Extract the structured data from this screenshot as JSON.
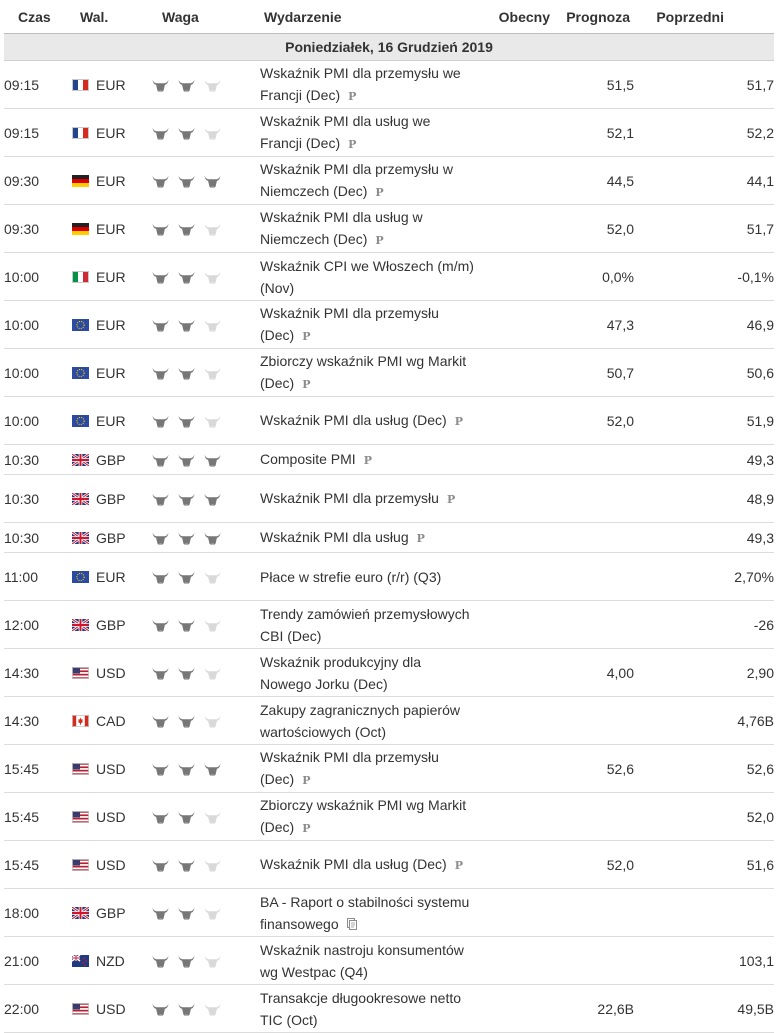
{
  "headers": {
    "time": "Czas",
    "currency": "Wal.",
    "importance": "Waga",
    "event": "Wydarzenie",
    "actual": "Obecny",
    "forecast": "Prognoza",
    "previous": "Poprzedni"
  },
  "date_label": "Poniedziałek, 16 Grudzień 2019",
  "preliminary_mark": "P",
  "importance_max": 3,
  "colors": {
    "bull_active": "#777777",
    "bull_inactive": "#d9d9d9",
    "date_row_bg": "#e9e9e9"
  },
  "events": [
    {
      "time": "09:15",
      "flag": "fr",
      "currency": "EUR",
      "importance": 2,
      "event": "Wskaźnik PMI dla przemysłu we Francji (Dec)",
      "marker": "P",
      "actual": "",
      "forecast": "51,5",
      "previous": "51,7"
    },
    {
      "time": "09:15",
      "flag": "fr",
      "currency": "EUR",
      "importance": 2,
      "event": "Wskaźnik PMI dla usług we Francji (Dec)",
      "marker": "P",
      "actual": "",
      "forecast": "52,1",
      "previous": "52,2"
    },
    {
      "time": "09:30",
      "flag": "de",
      "currency": "EUR",
      "importance": 3,
      "event": "Wskaźnik PMI dla przemysłu w Niemczech (Dec)",
      "marker": "P",
      "actual": "",
      "forecast": "44,5",
      "previous": "44,1"
    },
    {
      "time": "09:30",
      "flag": "de",
      "currency": "EUR",
      "importance": 2,
      "event": "Wskaźnik PMI dla usług w Niemczech (Dec)",
      "marker": "P",
      "actual": "",
      "forecast": "52,0",
      "previous": "51,7"
    },
    {
      "time": "10:00",
      "flag": "it",
      "currency": "EUR",
      "importance": 2,
      "event": "Wskaźnik CPI we Włoszech (m/m) (Nov)",
      "marker": "",
      "actual": "",
      "forecast": "0,0%",
      "previous": "-0,1%"
    },
    {
      "time": "10:00",
      "flag": "eu",
      "currency": "EUR",
      "importance": 2,
      "event": "Wskaźnik PMI dla przemysłu (Dec)",
      "marker": "P",
      "actual": "",
      "forecast": "47,3",
      "previous": "46,9"
    },
    {
      "time": "10:00",
      "flag": "eu",
      "currency": "EUR",
      "importance": 2,
      "event": "Zbiorczy wskaźnik PMI wg Markit (Dec)",
      "marker": "P",
      "actual": "",
      "forecast": "50,7",
      "previous": "50,6"
    },
    {
      "time": "10:00",
      "flag": "eu",
      "currency": "EUR",
      "importance": 2,
      "event": "Wskaźnik PMI dla usług (Dec)",
      "marker": "P",
      "actual": "",
      "forecast": "52,0",
      "previous": "51,9"
    },
    {
      "time": "10:30",
      "flag": "gb",
      "currency": "GBP",
      "importance": 3,
      "event": "Composite PMI",
      "marker": "P",
      "actual": "",
      "forecast": "",
      "previous": "49,3"
    },
    {
      "time": "10:30",
      "flag": "gb",
      "currency": "GBP",
      "importance": 3,
      "event": "Wskaźnik PMI dla przemysłu",
      "marker": "P",
      "actual": "",
      "forecast": "",
      "previous": "48,9"
    },
    {
      "time": "10:30",
      "flag": "gb",
      "currency": "GBP",
      "importance": 3,
      "event": "Wskaźnik PMI dla usług",
      "marker": "P",
      "actual": "",
      "forecast": "",
      "previous": "49,3"
    },
    {
      "time": "11:00",
      "flag": "eu",
      "currency": "EUR",
      "importance": 2,
      "event": "Płace w strefie euro (r/r) (Q3)",
      "marker": "",
      "actual": "",
      "forecast": "",
      "previous": "2,70%"
    },
    {
      "time": "12:00",
      "flag": "gb",
      "currency": "GBP",
      "importance": 2,
      "event": "Trendy zamówień przemysłowych CBI (Dec)",
      "marker": "",
      "actual": "",
      "forecast": "",
      "previous": "-26"
    },
    {
      "time": "14:30",
      "flag": "us",
      "currency": "USD",
      "importance": 2,
      "event": "Wskaźnik produkcyjny dla Nowego Jorku (Dec)",
      "marker": "",
      "actual": "",
      "forecast": "4,00",
      "previous": "2,90"
    },
    {
      "time": "14:30",
      "flag": "ca",
      "currency": "CAD",
      "importance": 2,
      "event": "Zakupy zagranicznych papierów wartościowych (Oct)",
      "marker": "",
      "actual": "",
      "forecast": "",
      "previous": "4,76B"
    },
    {
      "time": "15:45",
      "flag": "us",
      "currency": "USD",
      "importance": 3,
      "event": "Wskaźnik PMI dla przemysłu (Dec)",
      "marker": "P",
      "actual": "",
      "forecast": "52,6",
      "previous": "52,6"
    },
    {
      "time": "15:45",
      "flag": "us",
      "currency": "USD",
      "importance": 2,
      "event": "Zbiorczy wskaźnik PMI wg Markit (Dec)",
      "marker": "P",
      "actual": "",
      "forecast": "",
      "previous": "52,0"
    },
    {
      "time": "15:45",
      "flag": "us",
      "currency": "USD",
      "importance": 2,
      "event": "Wskaźnik PMI dla usług (Dec)",
      "marker": "P",
      "actual": "",
      "forecast": "52,0",
      "previous": "51,6"
    },
    {
      "time": "18:00",
      "flag": "gb",
      "currency": "GBP",
      "importance": 2,
      "event": "BA - Raport o stabilności systemu finansowego",
      "marker": "doc",
      "actual": "",
      "forecast": "",
      "previous": ""
    },
    {
      "time": "21:00",
      "flag": "nz",
      "currency": "NZD",
      "importance": 2,
      "event": "Wskaźnik nastroju konsumentów wg Westpac (Q4)",
      "marker": "",
      "actual": "",
      "forecast": "",
      "previous": "103,1"
    },
    {
      "time": "22:00",
      "flag": "us",
      "currency": "USD",
      "importance": 2,
      "event": "Transakcje długookresowe netto TIC (Oct)",
      "marker": "",
      "actual": "",
      "forecast": "22,6B",
      "previous": "49,5B"
    }
  ]
}
